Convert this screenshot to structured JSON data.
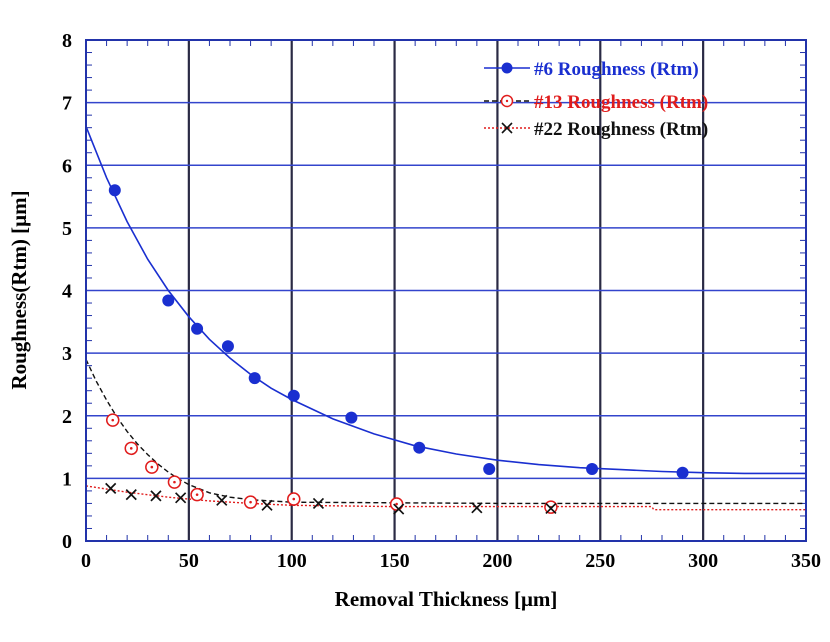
{
  "chart_data": {
    "type": "scatter",
    "title": "",
    "xlabel": "Removal Thickness [μm]",
    "ylabel": "Roughness(Rtm) [μm]",
    "xlim": [
      0,
      350
    ],
    "ylim": [
      0,
      8
    ],
    "xticks": [
      "0",
      "50",
      "100",
      "150",
      "200",
      "250",
      "300",
      "350"
    ],
    "yticks": [
      "0",
      "1",
      "2",
      "3",
      "4",
      "5",
      "6",
      "7",
      "8"
    ],
    "grid": true,
    "legend_position": "top-right",
    "series": [
      {
        "name": "#6 Roughness (Rtm)",
        "color": "#1a2fd0",
        "marker": "filled-circle",
        "line": "solid",
        "x": [
          14,
          40,
          54,
          69,
          82,
          101,
          129,
          162,
          196,
          246,
          290
        ],
        "y": [
          5.6,
          3.84,
          3.39,
          3.11,
          2.6,
          2.32,
          1.97,
          1.49,
          1.15,
          1.15,
          1.09
        ],
        "fit_x": [
          0,
          10,
          20,
          30,
          40,
          50,
          60,
          70,
          80,
          90,
          100,
          120,
          140,
          160,
          180,
          200,
          220,
          240,
          260,
          280,
          300,
          320,
          350
        ],
        "fit_y": [
          6.62,
          5.8,
          5.1,
          4.5,
          4.0,
          3.58,
          3.22,
          2.92,
          2.66,
          2.44,
          2.26,
          1.95,
          1.71,
          1.52,
          1.39,
          1.29,
          1.22,
          1.17,
          1.14,
          1.11,
          1.09,
          1.08,
          1.08
        ]
      },
      {
        "name": "#13 Roughness (Rtm)",
        "color": "#e01c1c",
        "marker": "open-circle",
        "line": "dashed-black",
        "x": [
          13,
          22,
          32,
          43,
          54,
          80,
          101,
          151,
          226
        ],
        "y": [
          1.93,
          1.48,
          1.18,
          0.94,
          0.74,
          0.62,
          0.67,
          0.59,
          0.54
        ],
        "fit_x": [
          0,
          5,
          10,
          15,
          20,
          25,
          30,
          35,
          40,
          45,
          50,
          60,
          70,
          80,
          100,
          150,
          200,
          250,
          300,
          350
        ],
        "fit_y": [
          2.9,
          2.55,
          2.25,
          1.98,
          1.75,
          1.55,
          1.38,
          1.23,
          1.1,
          0.99,
          0.9,
          0.77,
          0.7,
          0.66,
          0.62,
          0.61,
          0.6,
          0.6,
          0.6,
          0.6
        ]
      },
      {
        "name": "#22 Roughness (Rtm)",
        "color": "#111111",
        "marker": "x",
        "line": "dotted-red",
        "x": [
          12,
          22,
          34,
          46,
          66,
          88,
          113,
          152,
          190,
          226
        ],
        "y": [
          0.84,
          0.74,
          0.72,
          0.69,
          0.65,
          0.57,
          0.6,
          0.51,
          0.53,
          0.52
        ],
        "fit_x": [
          0,
          20,
          40,
          60,
          80,
          100,
          150,
          200,
          275,
          276,
          350
        ],
        "fit_y": [
          0.88,
          0.78,
          0.7,
          0.64,
          0.6,
          0.57,
          0.55,
          0.55,
          0.55,
          0.5,
          0.5
        ]
      }
    ]
  }
}
